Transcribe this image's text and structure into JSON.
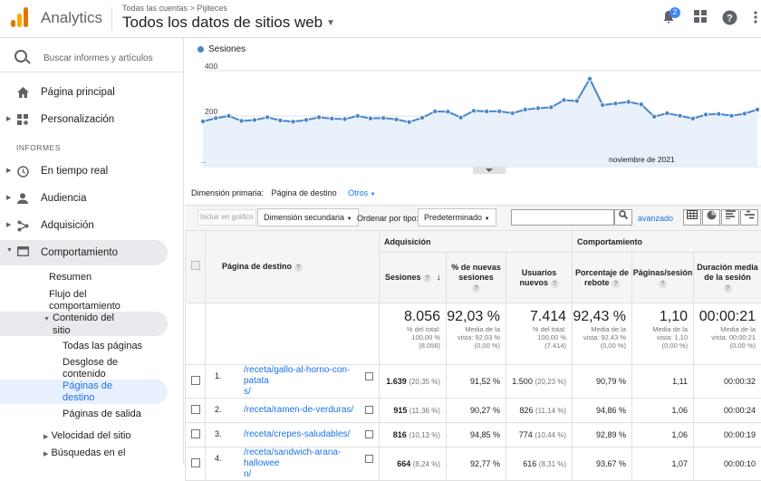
{
  "header": {
    "app_name": "Analytics",
    "breadcrumb_account": "Todas las cuentas",
    "breadcrumb_sep": ">",
    "breadcrumb_property": "Pijiteces",
    "property_view": "Todos los datos de sitios web",
    "notifications_count": "2"
  },
  "sidebar": {
    "search_placeholder": "Buscar informes y artículos",
    "home": "Página principal",
    "customization": "Personalización",
    "reports_label": "INFORMES",
    "realtime": "En tiempo real",
    "audience": "Audiencia",
    "acquisition": "Adquisición",
    "behavior": "Comportamiento",
    "behavior_sub": {
      "overview": "Resumen",
      "flow_1": "Flujo del",
      "flow_2": "comportamiento",
      "content_1": "Contenido del",
      "content_2": "sitio",
      "all_pages": "Todas las páginas",
      "drilldown_1": "Desglose de",
      "drilldown_2": "contenido",
      "landing_1": "Páginas de",
      "landing_2": "destino",
      "exit_pages": "Páginas de salida",
      "site_speed": "Velocidad del sitio",
      "search_1": "Búsquedas en el"
    }
  },
  "chart_data": {
    "type": "line",
    "series": [
      {
        "name": "Sesiones",
        "values": [
          176,
          190,
          200,
          178,
          182,
          194,
          180,
          175,
          182,
          194,
          188,
          186,
          200,
          189,
          191,
          185,
          173,
          192,
          220,
          219,
          193,
          223,
          220,
          221,
          212,
          228,
          234,
          238,
          270,
          266,
          364,
          248,
          255,
          262,
          251,
          197,
          212,
          201,
          188,
          206,
          209,
          201,
          210,
          228
        ]
      }
    ],
    "y_tick_labels": [
      "400",
      "200"
    ],
    "x_label": "...",
    "x_period_label": "noviembre de 2021",
    "color": "#4a86c8"
  },
  "controls": {
    "primary_dimension_label": "Dimensión primaria:",
    "primary_dimension_value": "Página de destino",
    "other_link": "Otros",
    "chart_include": "Incluir en gráfico",
    "secondary_dimension": "Dimensión secundaria",
    "sort_type_label": "Ordenar por tipo:",
    "sort_type_value": "Predeterminado",
    "advanced": "avanzado"
  },
  "table": {
    "col_landing": "Página de destino",
    "group_acquisition": "Adquisición",
    "group_behavior": "Comportamiento",
    "headers": {
      "sessions": "Sesiones",
      "new_sessions_1": "% de nuevas",
      "new_sessions_2": "sesiones",
      "new_users_1": "Usuarios",
      "new_users_2": "nuevos",
      "bounce_1": "Porcentaje de",
      "bounce_2": "rebote",
      "pps": "Páginas/sesión",
      "duration_1": "Duración media",
      "duration_2": "de la sesión"
    },
    "totals": {
      "sessions": "8.056",
      "sessions_s1": "% del total:",
      "sessions_s2": "100,00 %",
      "sessions_s3": "(8.056)",
      "new_sessions": "92,03 %",
      "new_sessions_s1": "Media de la",
      "new_sessions_s2": "vista: 92,03 %",
      "new_sessions_s3": "(0,00 %)",
      "new_users": "7.414",
      "new_users_s1": "% del total:",
      "new_users_s2": "100,00 %",
      "new_users_s3": "(7.414)",
      "bounce": "92,43 %",
      "bounce_s1": "Media de la",
      "bounce_s2": "vista: 92,43 %",
      "bounce_s3": "(0,00 %)",
      "pps": "1,10",
      "pps_s1": "Media de la",
      "pps_s2": "vista: 1,10",
      "pps_s3": "(0,00 %)",
      "duration": "00:00:21",
      "duration_s1": "Media de la",
      "duration_s2": "vista: 00:00:21",
      "duration_s3": "(0,00 %)"
    },
    "rows": [
      {
        "index": "1.",
        "page_1": "/receta/gallo-al-horno-con-patata",
        "page_2": "s/",
        "sessions": "1.639",
        "sessions_pct": "(20,35 %)",
        "new_sessions": "91,52 %",
        "new_users": "1.500",
        "new_users_pct": "(20,23 %)",
        "bounce": "90,79 %",
        "pps": "1,11",
        "duration": "00:00:32"
      },
      {
        "index": "2.",
        "page_1": "/receta/ramen-de-verduras/",
        "page_2": "",
        "sessions": "915",
        "sessions_pct": "(11,36 %)",
        "new_sessions": "90,27 %",
        "new_users": "826",
        "new_users_pct": "(11,14 %)",
        "bounce": "94,86 %",
        "pps": "1,06",
        "duration": "00:00:24"
      },
      {
        "index": "3.",
        "page_1": "/receta/crepes-saludables/",
        "page_2": "",
        "sessions": "816",
        "sessions_pct": "(10,13 %)",
        "new_sessions": "94,85 %",
        "new_users": "774",
        "new_users_pct": "(10,44 %)",
        "bounce": "92,89 %",
        "pps": "1,06",
        "duration": "00:00:19"
      },
      {
        "index": "4.",
        "page_1": "/receta/sandwich-arana-hallowee",
        "page_2": "n/",
        "sessions": "664",
        "sessions_pct": "(8,24 %)",
        "new_sessions": "92,77 %",
        "new_users": "616",
        "new_users_pct": "(8,31 %)",
        "bounce": "93,67 %",
        "pps": "1,07",
        "duration": "00:00:10"
      }
    ]
  }
}
